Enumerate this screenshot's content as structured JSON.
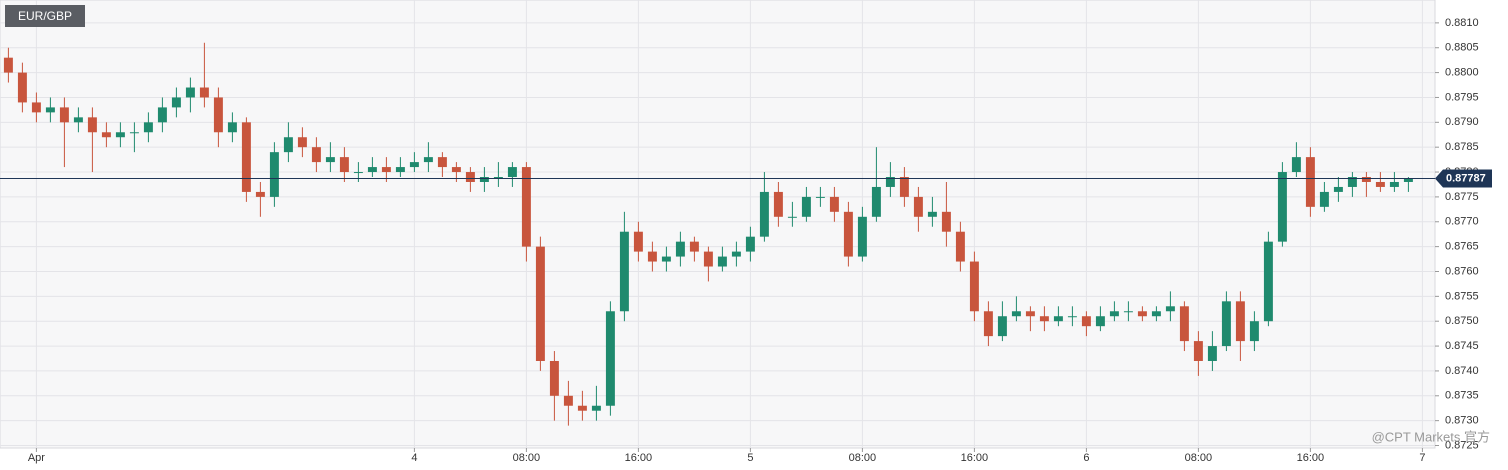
{
  "chart_data": {
    "type": "candlestick",
    "title": "EUR/GBP",
    "watermark": "@CPT Markets 官方",
    "x": [
      -5,
      -4,
      -3,
      -2,
      -1,
      0,
      1,
      2,
      3,
      4,
      5,
      6,
      7,
      8,
      9,
      10,
      11,
      12,
      13,
      14,
      15,
      16,
      17,
      18,
      19,
      20,
      21,
      22,
      23,
      24,
      25,
      26,
      27,
      28,
      29,
      30,
      31,
      32,
      33,
      34,
      35,
      36,
      37,
      38,
      39,
      40,
      41,
      42,
      43,
      44,
      45,
      46,
      47,
      48,
      49,
      50,
      51,
      52,
      53,
      54,
      55,
      56,
      57,
      58,
      59,
      60,
      61,
      62,
      63,
      64,
      65,
      66,
      67,
      68,
      69,
      70,
      71,
      72,
      73,
      74,
      75,
      76,
      77,
      78,
      79,
      80,
      81,
      82,
      83,
      84,
      85,
      86,
      87,
      88,
      89,
      90,
      91,
      92,
      93,
      94,
      95
    ],
    "open": [
      0.8803,
      0.88,
      0.8794,
      0.8792,
      0.8793,
      0.879,
      0.8791,
      0.8788,
      0.8787,
      0.8788,
      0.8788,
      0.879,
      0.8793,
      0.8795,
      0.8797,
      0.8795,
      0.8788,
      0.879,
      0.8776,
      0.8775,
      0.8784,
      0.8787,
      0.8785,
      0.8782,
      0.8783,
      0.878,
      0.878,
      0.8781,
      0.878,
      0.8781,
      0.8782,
      0.8783,
      0.8781,
      0.878,
      0.8778,
      0.8779,
      0.8779,
      0.8781,
      0.8765,
      0.8742,
      0.8735,
      0.8733,
      0.8732,
      0.8733,
      0.8752,
      0.8768,
      0.8764,
      0.8762,
      0.8763,
      0.8766,
      0.8764,
      0.8761,
      0.8763,
      0.8764,
      0.8767,
      0.8776,
      0.8771,
      0.8771,
      0.8775,
      0.8775,
      0.8772,
      0.8763,
      0.8771,
      0.8777,
      0.8779,
      0.8775,
      0.8771,
      0.8772,
      0.8768,
      0.8762,
      0.8752,
      0.8747,
      0.8751,
      0.8752,
      0.8751,
      0.875,
      0.8751,
      0.8751,
      0.8749,
      0.8751,
      0.8752,
      0.8752,
      0.8751,
      0.8752,
      0.8753,
      0.8746,
      0.8742,
      0.8745,
      0.8754,
      0.8746,
      0.875,
      0.8766,
      0.878,
      0.8783,
      0.8773,
      0.8776,
      0.8777,
      0.8779,
      0.8778,
      0.8777,
      0.8778
    ],
    "high": [
      0.8805,
      0.8802,
      0.8796,
      0.8795,
      0.8795,
      0.8793,
      0.8793,
      0.879,
      0.879,
      0.879,
      0.8792,
      0.8795,
      0.8797,
      0.8799,
      0.8806,
      0.8797,
      0.8792,
      0.8791,
      0.8778,
      0.8786,
      0.879,
      0.8789,
      0.8787,
      0.8786,
      0.8785,
      0.8782,
      0.8783,
      0.8783,
      0.8783,
      0.8784,
      0.8786,
      0.8784,
      0.8782,
      0.8781,
      0.8781,
      0.8782,
      0.8782,
      0.8782,
      0.8767,
      0.8744,
      0.8738,
      0.8736,
      0.8737,
      0.8754,
      0.8772,
      0.877,
      0.8766,
      0.8765,
      0.8768,
      0.8767,
      0.8765,
      0.8765,
      0.8766,
      0.8769,
      0.878,
      0.8778,
      0.8774,
      0.8777,
      0.8777,
      0.8777,
      0.8774,
      0.8773,
      0.8785,
      0.8782,
      0.8781,
      0.8777,
      0.8775,
      0.8778,
      0.877,
      0.8764,
      0.8754,
      0.8754,
      0.8755,
      0.8753,
      0.8753,
      0.8753,
      0.8753,
      0.8752,
      0.8753,
      0.8754,
      0.8754,
      0.8753,
      0.8753,
      0.8756,
      0.8754,
      0.8748,
      0.8748,
      0.8756,
      0.8756,
      0.8752,
      0.8768,
      0.8782,
      0.8786,
      0.8785,
      0.8778,
      0.8779,
      0.878,
      0.878,
      0.878,
      0.878,
      0.8779
    ],
    "low": [
      0.8798,
      0.8792,
      0.879,
      0.879,
      0.8781,
      0.8788,
      0.878,
      0.8785,
      0.8785,
      0.8784,
      0.8786,
      0.8788,
      0.8791,
      0.8792,
      0.8793,
      0.8785,
      0.8786,
      0.8774,
      0.8771,
      0.8773,
      0.8782,
      0.8783,
      0.878,
      0.878,
      0.8778,
      0.8778,
      0.8779,
      0.8778,
      0.8779,
      0.878,
      0.878,
      0.8779,
      0.8778,
      0.8776,
      0.8776,
      0.8777,
      0.8777,
      0.8762,
      0.874,
      0.873,
      0.8729,
      0.873,
      0.873,
      0.8731,
      0.875,
      0.8762,
      0.876,
      0.876,
      0.8761,
      0.8762,
      0.8758,
      0.876,
      0.8761,
      0.8762,
      0.8766,
      0.8769,
      0.8769,
      0.877,
      0.8773,
      0.877,
      0.8761,
      0.8762,
      0.877,
      0.8775,
      0.8773,
      0.8768,
      0.8769,
      0.8765,
      0.876,
      0.875,
      0.8745,
      0.8746,
      0.875,
      0.8748,
      0.8748,
      0.8749,
      0.8749,
      0.8747,
      0.8748,
      0.875,
      0.875,
      0.875,
      0.875,
      0.875,
      0.8744,
      0.8739,
      0.874,
      0.8744,
      0.8742,
      0.8744,
      0.8749,
      0.8765,
      0.8779,
      0.8771,
      0.8772,
      0.8774,
      0.8775,
      0.8775,
      0.8776,
      0.8776,
      0.8776
    ],
    "close": [
      0.88,
      0.8794,
      0.8792,
      0.8793,
      0.879,
      0.8791,
      0.8788,
      0.8787,
      0.8788,
      0.8788,
      0.879,
      0.8793,
      0.8795,
      0.8797,
      0.8795,
      0.8788,
      0.879,
      0.8776,
      0.8775,
      0.8784,
      0.8787,
      0.8785,
      0.8782,
      0.8783,
      0.878,
      0.878,
      0.8781,
      0.878,
      0.8781,
      0.8782,
      0.8783,
      0.8781,
      0.878,
      0.8778,
      0.8779,
      0.8779,
      0.8781,
      0.8765,
      0.8742,
      0.8735,
      0.8733,
      0.8732,
      0.8733,
      0.8752,
      0.8768,
      0.8764,
      0.8762,
      0.8763,
      0.8766,
      0.8764,
      0.8761,
      0.8763,
      0.8764,
      0.8767,
      0.8776,
      0.8771,
      0.8771,
      0.8775,
      0.8775,
      0.8772,
      0.8763,
      0.8771,
      0.8777,
      0.8779,
      0.8775,
      0.8771,
      0.8772,
      0.8768,
      0.8762,
      0.8752,
      0.8747,
      0.8751,
      0.8752,
      0.8751,
      0.875,
      0.8751,
      0.8751,
      0.8749,
      0.8751,
      0.8752,
      0.8752,
      0.8751,
      0.8752,
      0.8753,
      0.8746,
      0.8742,
      0.8745,
      0.8754,
      0.8746,
      0.875,
      0.8766,
      0.878,
      0.8783,
      0.8773,
      0.8776,
      0.8777,
      0.8779,
      0.8778,
      0.8777,
      0.8778,
      0.87787
    ],
    "up_color": "#1f8a6e",
    "down_color": "#c8553d",
    "last_price": 0.87787,
    "last_price_color": "#1e3556",
    "xlim": [
      -5.6,
      96.9
    ],
    "ylim": [
      0.87245,
      0.88146
    ],
    "xticks": [
      {
        "value": -3,
        "label": "Apr"
      },
      {
        "value": 24,
        "label": "4"
      },
      {
        "value": 32,
        "label": "08:00"
      },
      {
        "value": 40,
        "label": "16:00"
      },
      {
        "value": 48,
        "label": "5"
      },
      {
        "value": 56,
        "label": "08:00"
      },
      {
        "value": 64,
        "label": "16:00"
      },
      {
        "value": 72,
        "label": "6"
      },
      {
        "value": 80,
        "label": "08:00"
      },
      {
        "value": 88,
        "label": "16:00"
      },
      {
        "value": 96,
        "label": "7"
      }
    ],
    "yticks": [
      {
        "value": 0.8725,
        "label": "0.8725"
      },
      {
        "value": 0.873,
        "label": "0.8730"
      },
      0.8735,
      {
        "value": 0.874,
        "label": "0.8740"
      },
      0.8745,
      {
        "value": 0.875,
        "label": "0.8750"
      },
      0.8755,
      {
        "value": 0.876,
        "label": "0.8760"
      },
      0.8765,
      {
        "value": 0.877,
        "label": "0.8770"
      },
      0.8775,
      {
        "value": 0.878,
        "label": "0.8780"
      },
      0.8785,
      {
        "value": 0.879,
        "label": "0.8790"
      },
      0.8795,
      {
        "value": 0.88,
        "label": "0.8800"
      },
      0.8805,
      {
        "value": 0.881,
        "label": "0.8810"
      }
    ],
    "grid": true
  }
}
